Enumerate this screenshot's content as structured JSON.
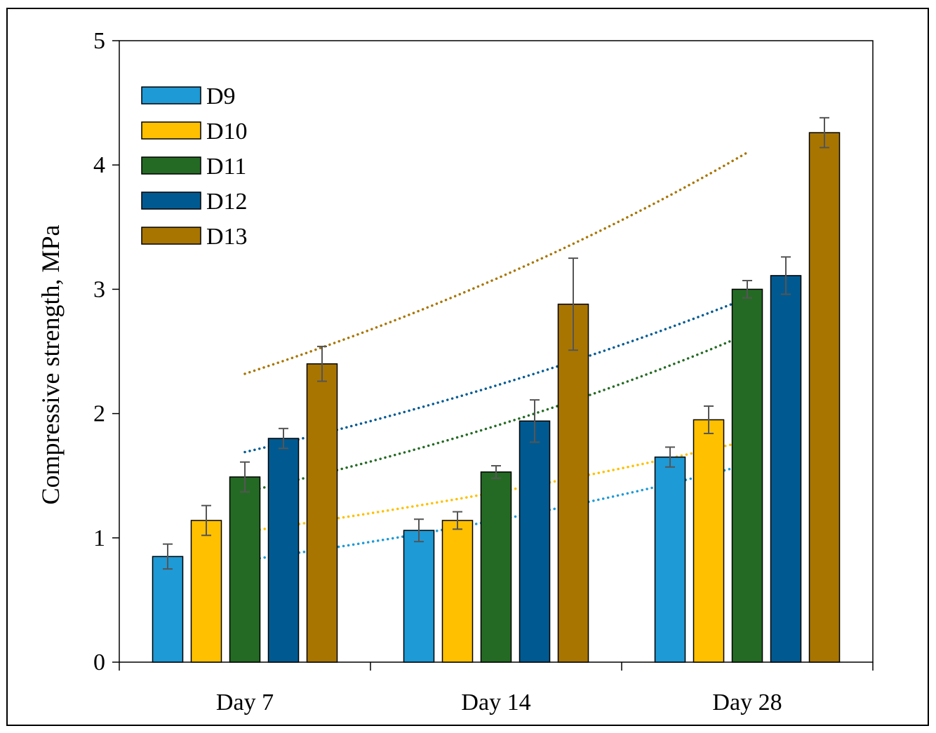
{
  "chart_data": {
    "type": "bar",
    "title": "",
    "xlabel": "",
    "ylabel": "Compressive strength, MPa",
    "ylim": [
      0,
      5
    ],
    "yticks": [
      0,
      1,
      2,
      3,
      4,
      5
    ],
    "categories": [
      "Day 7",
      "Day 14",
      "Day 28"
    ],
    "legend_position": "top-left",
    "grid": false,
    "series": [
      {
        "name": "D9",
        "color": "#1e9ad6",
        "values": [
          0.85,
          1.06,
          1.65
        ],
        "errors": [
          0.1,
          0.09,
          0.08
        ],
        "trend": [
          0.82,
          1.59
        ]
      },
      {
        "name": "D10",
        "color": "#ffc000",
        "values": [
          1.14,
          1.14,
          1.95
        ],
        "errors": [
          0.12,
          0.07,
          0.11
        ],
        "trend": [
          1.05,
          1.78
        ]
      },
      {
        "name": "D11",
        "color": "#246a24",
        "values": [
          1.49,
          1.53,
          3.0
        ],
        "errors": [
          0.12,
          0.05,
          0.07
        ],
        "trend": [
          1.37,
          2.64
        ]
      },
      {
        "name": "D12",
        "color": "#005a91",
        "values": [
          1.8,
          1.94,
          3.11
        ],
        "errors": [
          0.08,
          0.17,
          0.15
        ],
        "trend": [
          1.69,
          2.93
        ]
      },
      {
        "name": "D13",
        "color": "#a87500",
        "values": [
          2.4,
          2.88,
          4.26
        ],
        "errors": [
          0.14,
          0.37,
          0.12
        ],
        "trend": [
          2.32,
          4.1
        ]
      }
    ]
  }
}
